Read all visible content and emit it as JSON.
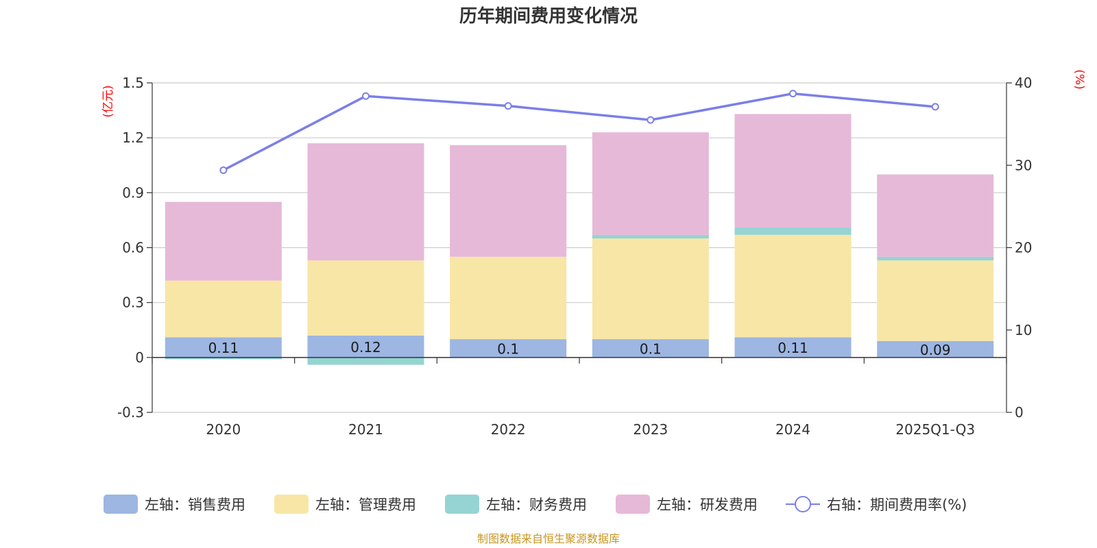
{
  "chart_data": {
    "type": "bar",
    "stacked": true,
    "title": "历年期间费用变化情况",
    "categories": [
      "2020",
      "2021",
      "2022",
      "2023",
      "2024",
      "2025Q1-Q3"
    ],
    "left_axis": {
      "unit": "(亿元)",
      "ylim": [
        -0.3,
        1.5
      ],
      "ticks": [
        -0.3,
        0,
        0.3,
        0.6,
        0.9,
        1.2,
        1.5
      ],
      "tick_labels": [
        "-0.3",
        "0",
        "0.3",
        "0.6",
        "0.9",
        "1.2",
        "1.5"
      ]
    },
    "right_axis": {
      "unit": "(%)",
      "ylim": [
        0,
        40
      ],
      "ticks": [
        0,
        10,
        20,
        30,
        40
      ],
      "tick_labels": [
        "0",
        "10",
        "20",
        "30",
        "40"
      ]
    },
    "series": [
      {
        "name": "销售费用",
        "legend": "左轴：销售费用",
        "axis": "left",
        "kind": "bar",
        "color": "#9db6e2",
        "values": [
          0.11,
          0.12,
          0.1,
          0.1,
          0.11,
          0.09
        ],
        "labels": [
          "0.11",
          "0.12",
          "0.1",
          "0.1",
          "0.11",
          "0.09"
        ]
      },
      {
        "name": "管理费用",
        "legend": "左轴：管理费用",
        "axis": "left",
        "kind": "bar",
        "color": "#f8e6a6",
        "values": [
          0.31,
          0.41,
          0.45,
          0.55,
          0.56,
          0.44
        ]
      },
      {
        "name": "财务费用",
        "legend": "左轴：财务费用",
        "axis": "left",
        "kind": "bar",
        "color": "#95d4d2",
        "values": [
          -0.01,
          -0.04,
          0.0,
          0.02,
          0.04,
          0.02
        ]
      },
      {
        "name": "研发费用",
        "legend": "左轴：研发费用",
        "axis": "left",
        "kind": "bar",
        "color": "#e6b9d8",
        "values": [
          0.43,
          0.64,
          0.61,
          0.56,
          0.62,
          0.45
        ]
      },
      {
        "name": "期间费用率(%)",
        "legend": "右轴：期间费用率(%)",
        "axis": "right",
        "kind": "line",
        "color": "#7b7fe8",
        "values": [
          29.4,
          38.4,
          37.2,
          35.5,
          38.7,
          37.1
        ]
      }
    ],
    "legend_position": "bottom",
    "grid": true
  },
  "footer": {
    "source": "制图数据来自恒生聚源数据库"
  }
}
